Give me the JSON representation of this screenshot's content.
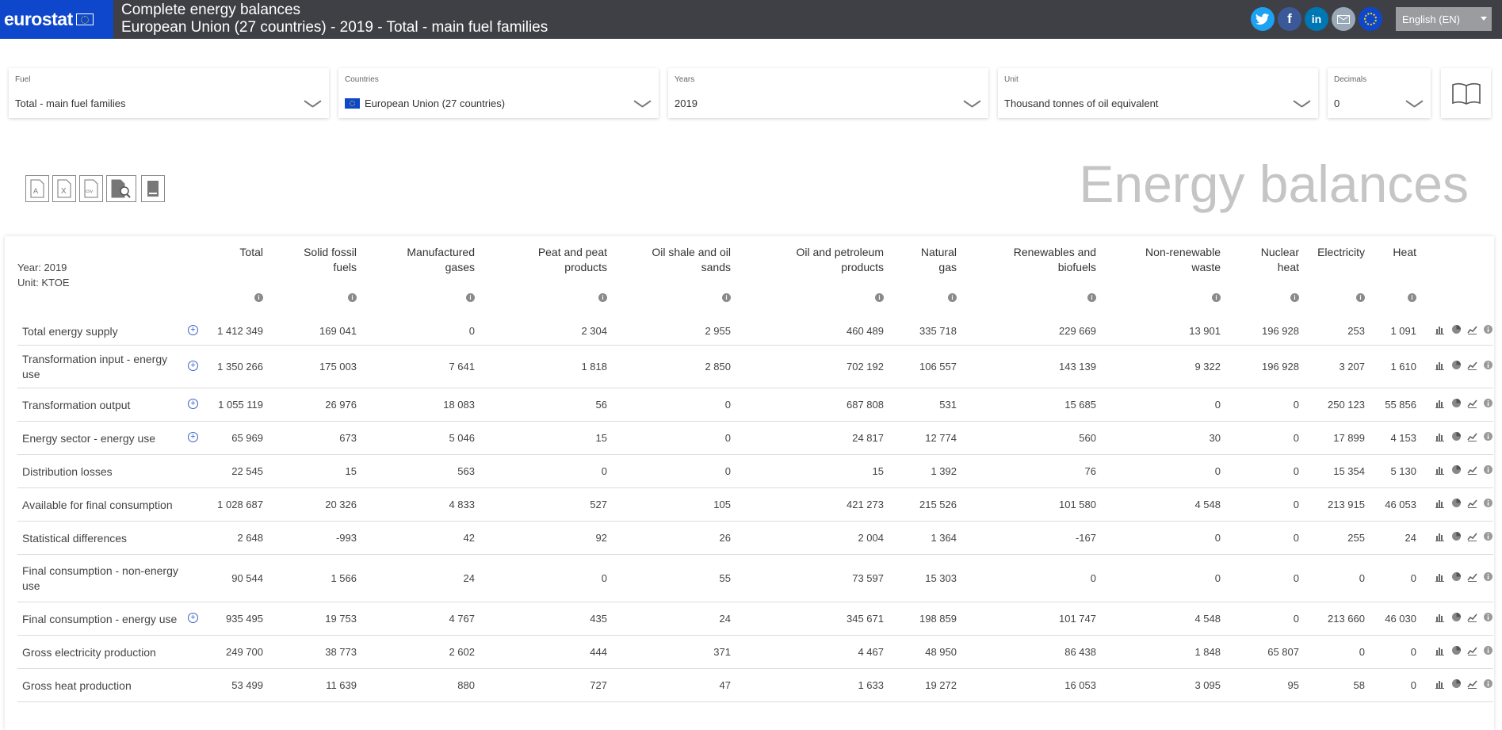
{
  "header": {
    "logo": "eurostat",
    "title1": "Complete energy balances",
    "title2": "European Union (27 countries) - 2019 - Total - main fuel families",
    "social": [
      "twitter-icon",
      "facebook-icon",
      "linkedin-icon",
      "email-icon",
      "eu-icon"
    ],
    "language": "English (EN)"
  },
  "filters": [
    {
      "label": "Fuel",
      "value": "Total - main fuel families"
    },
    {
      "label": "Countries",
      "value": "European Union (27 countries)"
    },
    {
      "label": "Years",
      "value": "2019"
    },
    {
      "label": "Unit",
      "value": "Thousand tonnes of oil equivalent"
    },
    {
      "label": "Decimals",
      "value": "0"
    }
  ],
  "export_tools": [
    "pdf-icon",
    "excel-icon",
    "csv-icon",
    "search-document-icon",
    "book-icon"
  ],
  "page_title": "Energy balances",
  "meta": {
    "year": "Year: 2019",
    "unit": "Unit: KTOE"
  },
  "columns": [
    [
      "Total"
    ],
    [
      "Solid fossil",
      "fuels"
    ],
    [
      "Manufactured",
      "gases"
    ],
    [
      "Peat and peat",
      "products"
    ],
    [
      "Oil shale and oil",
      "sands"
    ],
    [
      "Oil and petroleum",
      "products"
    ],
    [
      "Natural",
      "gas"
    ],
    [
      "Renewables and",
      "biofuels"
    ],
    [
      "Non-renewable",
      "waste"
    ],
    [
      "Nuclear",
      "heat"
    ],
    [
      "Electricity"
    ],
    [
      "Heat"
    ]
  ],
  "rows": [
    {
      "label": [
        "Total energy supply"
      ],
      "expand": true,
      "values": [
        "1 412 349",
        "169 041",
        "0",
        "2 304",
        "2 955",
        "460 489",
        "335 718",
        "229 669",
        "13 901",
        "196 928",
        "253",
        "1 091"
      ]
    },
    {
      "label": [
        "Transformation input - energy",
        "use"
      ],
      "expand": true,
      "values": [
        "1 350 266",
        "175 003",
        "7 641",
        "1 818",
        "2 850",
        "702 192",
        "106 557",
        "143 139",
        "9 322",
        "196 928",
        "3 207",
        "1 610"
      ]
    },
    {
      "label": [
        "Transformation output"
      ],
      "expand": true,
      "values": [
        "1 055 119",
        "26 976",
        "18 083",
        "56",
        "0",
        "687 808",
        "531",
        "15 685",
        "0",
        "0",
        "250 123",
        "55 856"
      ]
    },
    {
      "label": [
        "Energy sector - energy use"
      ],
      "expand": true,
      "values": [
        "65 969",
        "673",
        "5 046",
        "15",
        "0",
        "24 817",
        "12 774",
        "560",
        "30",
        "0",
        "17 899",
        "4 153"
      ]
    },
    {
      "label": [
        "Distribution losses"
      ],
      "expand": false,
      "values": [
        "22 545",
        "15",
        "563",
        "0",
        "0",
        "15",
        "1 392",
        "76",
        "0",
        "0",
        "15 354",
        "5 130"
      ]
    },
    {
      "label": [
        "Available for final consumption"
      ],
      "expand": false,
      "values": [
        "1 028 687",
        "20 326",
        "4 833",
        "527",
        "105",
        "421 273",
        "215 526",
        "101 580",
        "4 548",
        "0",
        "213 915",
        "46 053"
      ]
    },
    {
      "label": [
        "Statistical differences"
      ],
      "expand": false,
      "values": [
        "2 648",
        "-993",
        "42",
        "92",
        "26",
        "2 004",
        "1 364",
        "-167",
        "0",
        "0",
        "255",
        "24"
      ]
    },
    {
      "label": [
        "Final consumption - non-energy",
        "use"
      ],
      "expand": false,
      "values": [
        "90 544",
        "1 566",
        "24",
        "0",
        "55",
        "73 597",
        "15 303",
        "0",
        "0",
        "0",
        "0",
        "0"
      ]
    },
    {
      "label": [
        "Final consumption - energy use"
      ],
      "expand": true,
      "values": [
        "935 495",
        "19 753",
        "4 767",
        "435",
        "24",
        "345 671",
        "198 859",
        "101 747",
        "4 548",
        "0",
        "213 660",
        "46 030"
      ]
    },
    {
      "label": [
        "Gross electricity production"
      ],
      "expand": false,
      "values": [
        "249 700",
        "38 773",
        "2 602",
        "444",
        "371",
        "4 467",
        "48 950",
        "86 438",
        "1 848",
        "65 807",
        "0",
        "0"
      ]
    },
    {
      "label": [
        "Gross heat production"
      ],
      "expand": false,
      "values": [
        "53 499",
        "11 639",
        "880",
        "727",
        "47",
        "1 633",
        "19 272",
        "16 053",
        "3 095",
        "95",
        "58",
        "0"
      ]
    }
  ],
  "row_actions": [
    "bar-chart-icon",
    "pie-chart-icon",
    "line-chart-icon",
    "info-icon"
  ],
  "colors": {
    "topbar": "#3e4046",
    "logo_bg": "#0e47cb",
    "accent": "#3b62c8",
    "title_grey": "#c5c5c5"
  }
}
